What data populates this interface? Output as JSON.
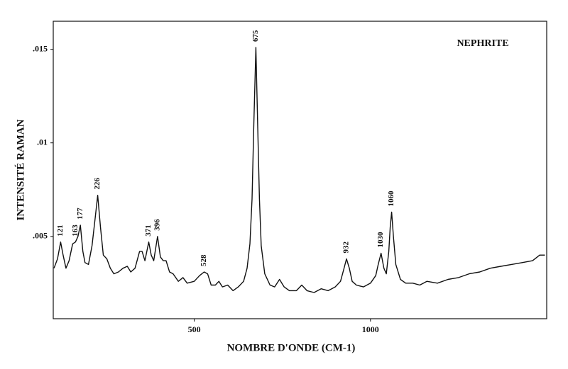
{
  "chart_data": {
    "type": "line",
    "title": "NEPHRITE",
    "x_label": "NOMBRE D'ONDE (CM-1)",
    "y_label": "INTENSITÉ RAMAN",
    "xlim": [
      100,
      1500
    ],
    "ylim": [
      0.0006,
      0.0165
    ],
    "xticks": [
      500,
      1000
    ],
    "yticks": [
      {
        "value": 0.005,
        "label": ".005"
      },
      {
        "value": 0.01,
        "label": ".01"
      },
      {
        "value": 0.015,
        "label": ".015"
      }
    ],
    "grid": false,
    "color": "#111111",
    "x": [
      102,
      112,
      121,
      128,
      136,
      145,
      155,
      163,
      170,
      177,
      184,
      190,
      200,
      210,
      219,
      226,
      234,
      242,
      252,
      262,
      272,
      285,
      298,
      310,
      320,
      332,
      345,
      352,
      360,
      371,
      378,
      385,
      396,
      404,
      412,
      420,
      430,
      440,
      455,
      468,
      480,
      500,
      515,
      528,
      538,
      548,
      560,
      570,
      580,
      595,
      610,
      625,
      640,
      650,
      658,
      664,
      669,
      675,
      680,
      685,
      690,
      700,
      715,
      728,
      742,
      755,
      770,
      790,
      805,
      820,
      840,
      860,
      880,
      900,
      915,
      925,
      932,
      940,
      948,
      960,
      980,
      1000,
      1015,
      1022,
      1030,
      1038,
      1045,
      1052,
      1056,
      1060,
      1065,
      1072,
      1085,
      1100,
      1120,
      1140,
      1160,
      1190,
      1220,
      1250,
      1280,
      1310,
      1340,
      1370,
      1400,
      1430,
      1460,
      1480,
      1495
    ],
    "values": [
      0.0033,
      0.0038,
      0.0047,
      0.004,
      0.0033,
      0.0037,
      0.0046,
      0.0047,
      0.005,
      0.0056,
      0.0042,
      0.0036,
      0.0035,
      0.0045,
      0.006,
      0.0072,
      0.0055,
      0.004,
      0.0038,
      0.0033,
      0.003,
      0.0031,
      0.0033,
      0.0034,
      0.0031,
      0.0033,
      0.0042,
      0.0042,
      0.0037,
      0.0047,
      0.004,
      0.0037,
      0.005,
      0.0039,
      0.0037,
      0.0037,
      0.0031,
      0.003,
      0.0026,
      0.0028,
      0.0025,
      0.0026,
      0.0029,
      0.0031,
      0.003,
      0.0024,
      0.0024,
      0.0026,
      0.0023,
      0.0024,
      0.0021,
      0.0023,
      0.0026,
      0.0033,
      0.0046,
      0.007,
      0.011,
      0.0151,
      0.011,
      0.007,
      0.0045,
      0.003,
      0.0024,
      0.0023,
      0.0027,
      0.0023,
      0.0021,
      0.0021,
      0.0024,
      0.0021,
      0.002,
      0.0022,
      0.0021,
      0.0023,
      0.0026,
      0.0033,
      0.0038,
      0.0033,
      0.0026,
      0.0024,
      0.0023,
      0.0025,
      0.0029,
      0.0035,
      0.0041,
      0.0033,
      0.003,
      0.0042,
      0.0055,
      0.0063,
      0.005,
      0.0035,
      0.0027,
      0.0025,
      0.0025,
      0.0024,
      0.0026,
      0.0025,
      0.0027,
      0.0028,
      0.003,
      0.0031,
      0.0033,
      0.0034,
      0.0035,
      0.0036,
      0.0037,
      0.004,
      0.004
    ],
    "peak_labels": [
      121,
      163,
      177,
      226,
      371,
      396,
      528,
      675,
      932,
      1030,
      1060
    ]
  }
}
